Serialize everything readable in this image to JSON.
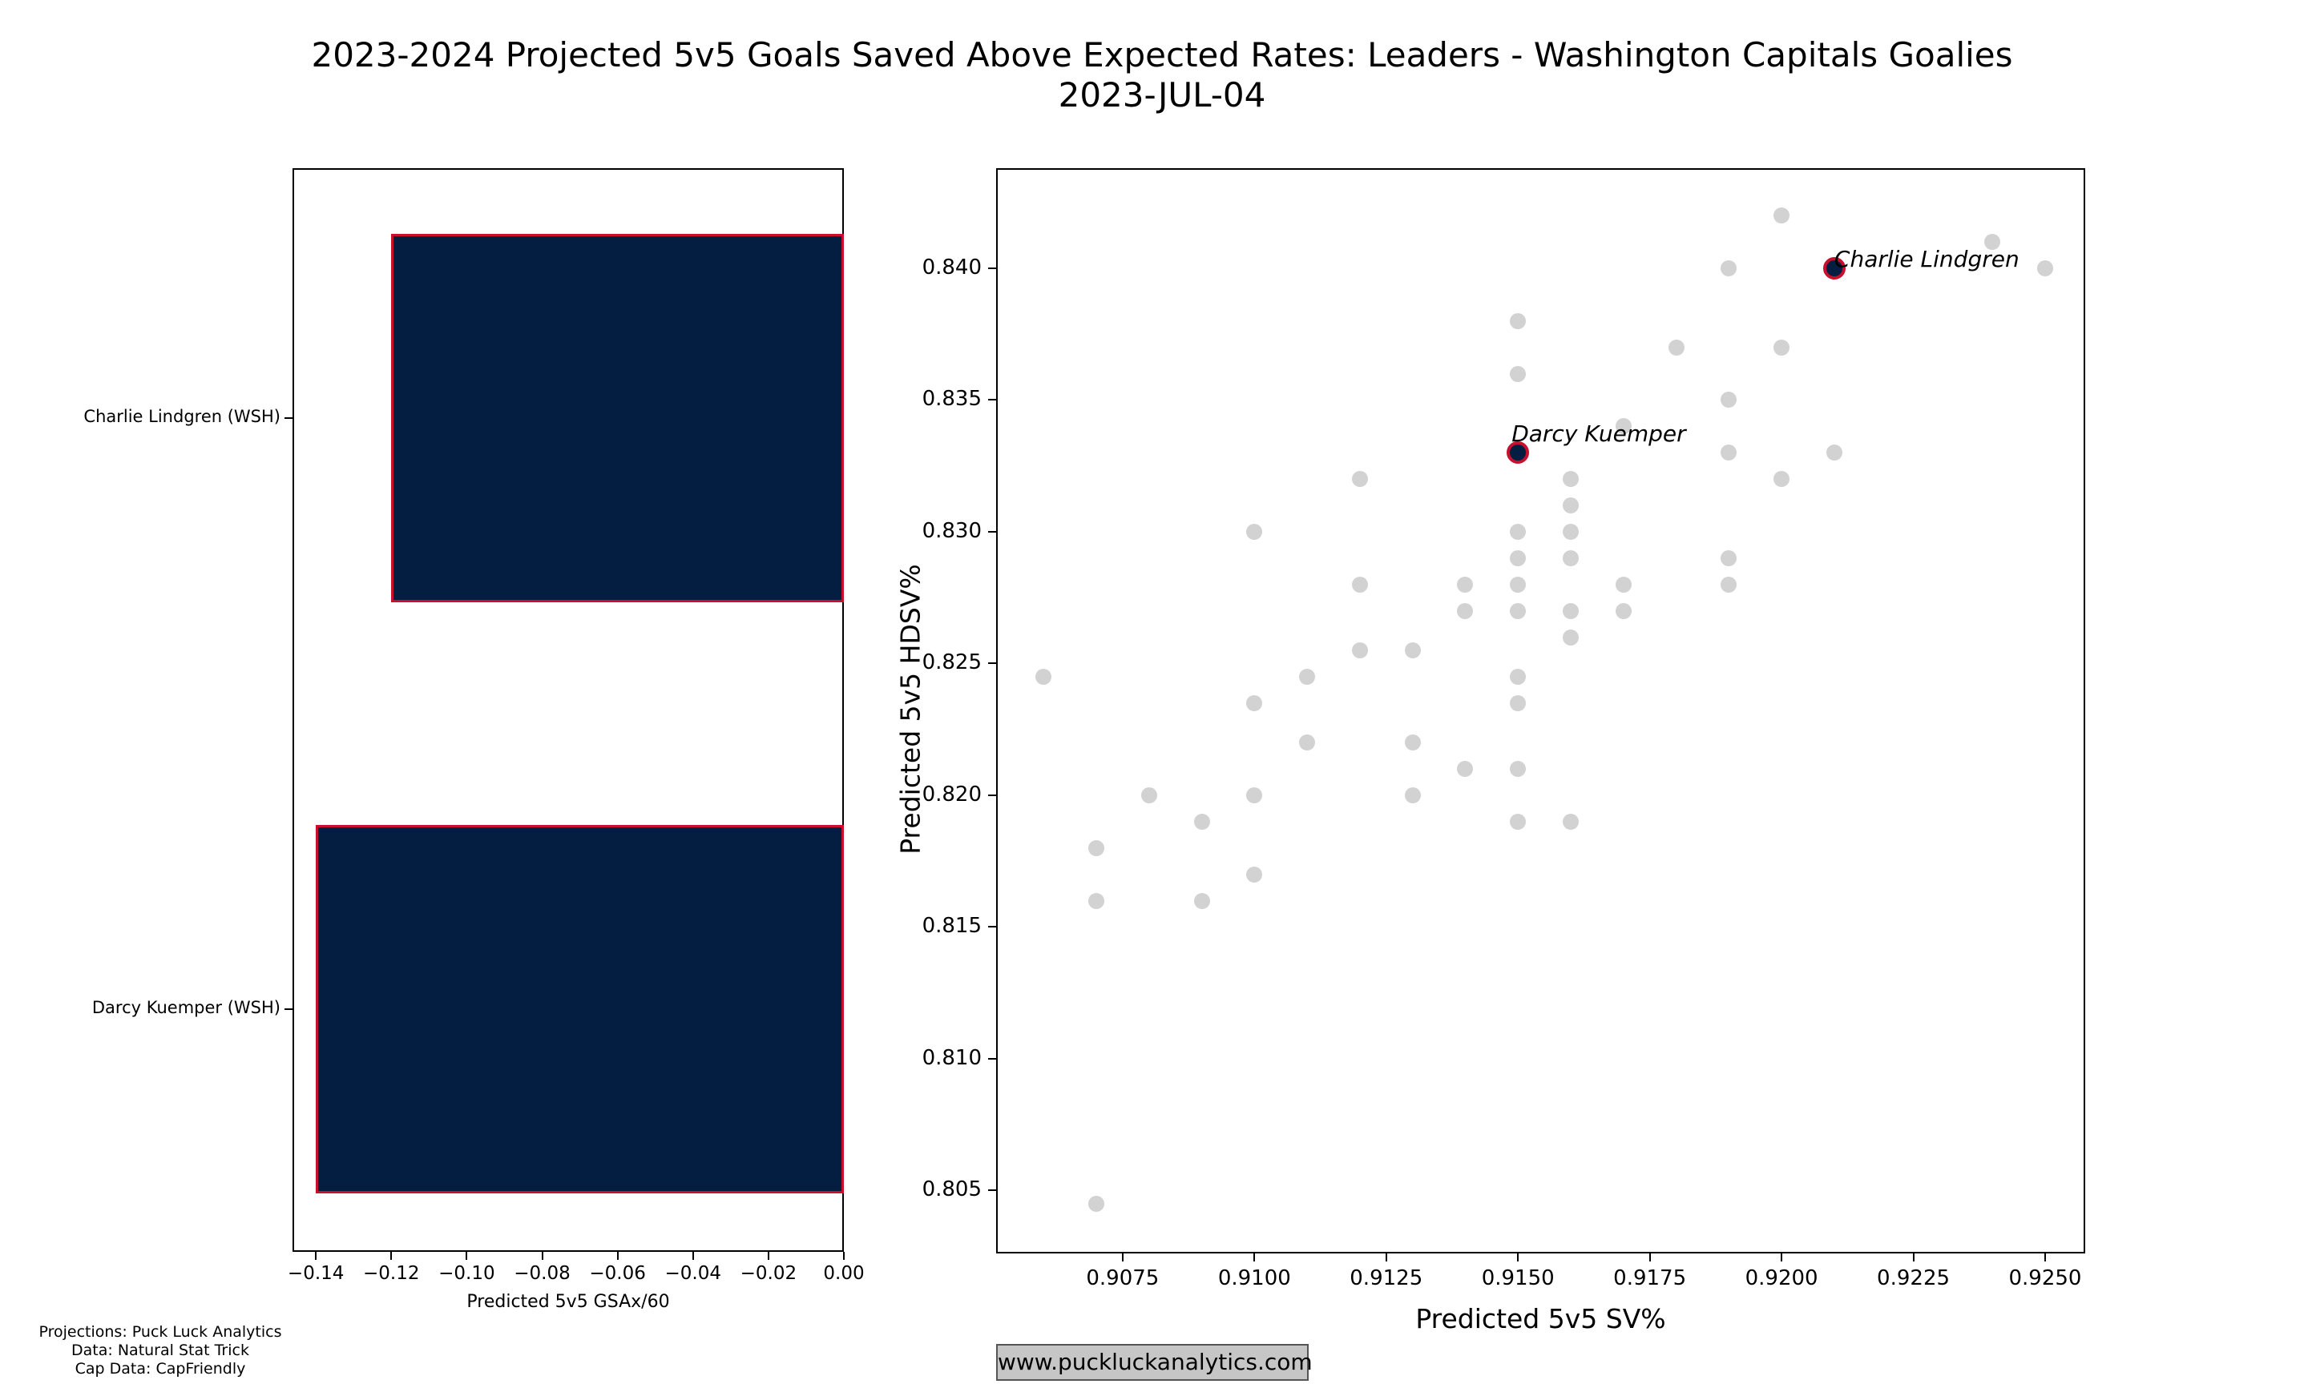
{
  "page": {
    "title_line1": "2023-2024 Projected 5v5 Goals Saved Above Expected Rates: Leaders - Washington Capitals Goalies",
    "title_line2": "2023-JUL-04"
  },
  "footer": {
    "lines": [
      "Projections: Puck Luck Analytics",
      "Data: Natural Stat Trick",
      "Cap Data: CapFriendly"
    ],
    "website": "www.puckluckanalytics.com"
  },
  "colors": {
    "navy": "#041e42",
    "red": "#c8102e",
    "dot_gray": "#d2d2d2",
    "badge_bg": "#c6c6c6",
    "badge_border": "#555555"
  },
  "chart_data": [
    {
      "type": "bar",
      "orientation": "horizontal",
      "title": "",
      "categories": [
        "Charlie Lindgren (WSH)",
        "Darcy Kuemper (WSH)"
      ],
      "values": [
        -0.12,
        -0.14
      ],
      "xlabel": "Predicted 5v5 GSAx/60",
      "ylabel": "",
      "xlim": [
        -0.1462,
        0
      ],
      "xticks": [
        -0.14,
        -0.12,
        -0.1,
        -0.08,
        -0.06,
        -0.04,
        -0.02,
        0.0
      ],
      "xtick_labels": [
        "−0.14",
        "−0.12",
        "−0.10",
        "−0.08",
        "−0.06",
        "−0.04",
        "−0.02",
        "0.00"
      ],
      "grid": false,
      "bar_fill": "#041e42",
      "bar_edge": "#c8102e"
    },
    {
      "type": "scatter",
      "title": "",
      "xlabel": "Predicted 5v5 SV%",
      "ylabel": "Predicted 5v5 HDSV%",
      "xlim": [
        0.9051,
        0.92576
      ],
      "ylim": [
        0.80261,
        0.8438
      ],
      "xticks": [
        0.9075,
        0.91,
        0.9125,
        0.915,
        0.9175,
        0.92,
        0.9225,
        0.925
      ],
      "xtick_labels": [
        "0.9075",
        "0.9100",
        "0.9125",
        "0.9150",
        "0.9175",
        "0.9200",
        "0.9225",
        "0.9250"
      ],
      "yticks": [
        0.805,
        0.81,
        0.815,
        0.82,
        0.825,
        0.83,
        0.835,
        0.84
      ],
      "ytick_labels": [
        "0.805",
        "0.810",
        "0.815",
        "0.820",
        "0.825",
        "0.830",
        "0.835",
        "0.840"
      ],
      "grid": false,
      "point_color": "#d2d2d2",
      "points": [
        [
          0.92,
          0.842
        ],
        [
          0.924,
          0.841
        ],
        [
          0.919,
          0.84
        ],
        [
          0.925,
          0.84
        ],
        [
          0.915,
          0.838
        ],
        [
          0.918,
          0.837
        ],
        [
          0.92,
          0.837
        ],
        [
          0.915,
          0.836
        ],
        [
          0.919,
          0.835
        ],
        [
          0.917,
          0.834
        ],
        [
          0.919,
          0.833
        ],
        [
          0.921,
          0.833
        ],
        [
          0.912,
          0.832
        ],
        [
          0.916,
          0.832
        ],
        [
          0.92,
          0.832
        ],
        [
          0.916,
          0.831
        ],
        [
          0.91,
          0.83
        ],
        [
          0.915,
          0.83
        ],
        [
          0.916,
          0.83
        ],
        [
          0.915,
          0.829
        ],
        [
          0.916,
          0.829
        ],
        [
          0.919,
          0.829
        ],
        [
          0.912,
          0.828
        ],
        [
          0.914,
          0.828
        ],
        [
          0.915,
          0.828
        ],
        [
          0.917,
          0.828
        ],
        [
          0.919,
          0.828
        ],
        [
          0.914,
          0.827
        ],
        [
          0.915,
          0.827
        ],
        [
          0.916,
          0.827
        ],
        [
          0.917,
          0.827
        ],
        [
          0.916,
          0.826
        ],
        [
          0.912,
          0.8255
        ],
        [
          0.913,
          0.8255
        ],
        [
          0.906,
          0.8245
        ],
        [
          0.911,
          0.8245
        ],
        [
          0.915,
          0.8245
        ],
        [
          0.91,
          0.8235
        ],
        [
          0.915,
          0.8235
        ],
        [
          0.911,
          0.822
        ],
        [
          0.913,
          0.822
        ],
        [
          0.914,
          0.821
        ],
        [
          0.915,
          0.821
        ],
        [
          0.908,
          0.82
        ],
        [
          0.91,
          0.82
        ],
        [
          0.913,
          0.82
        ],
        [
          0.909,
          0.819
        ],
        [
          0.915,
          0.819
        ],
        [
          0.916,
          0.819
        ],
        [
          0.907,
          0.818
        ],
        [
          0.91,
          0.817
        ],
        [
          0.907,
          0.816
        ],
        [
          0.909,
          0.816
        ],
        [
          0.907,
          0.8045
        ]
      ],
      "highlights": [
        {
          "label": "Darcy Kuemper",
          "x": 0.915,
          "y": 0.833
        },
        {
          "label": "Charlie Lindgren",
          "x": 0.921,
          "y": 0.84
        }
      ]
    }
  ]
}
